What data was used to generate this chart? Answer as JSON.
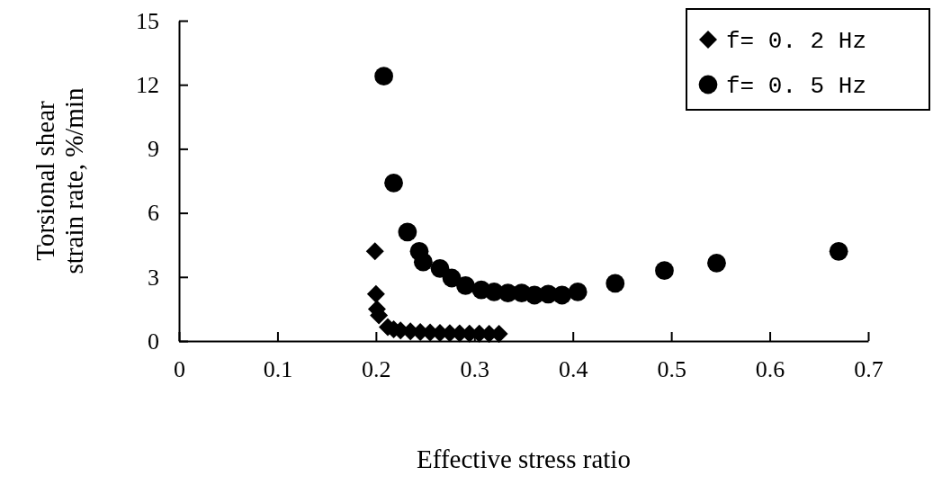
{
  "chart_data": {
    "type": "scatter",
    "xlabel": "Effective stress ratio",
    "ylabel": "Torsional shear strain rate, %/min",
    "xlim": [
      0,
      0.7
    ],
    "ylim": [
      0,
      15
    ],
    "xticks": [
      0,
      0.1,
      0.2,
      0.3,
      0.4,
      0.5,
      0.6,
      0.7
    ],
    "yticks": [
      0,
      3,
      6,
      9,
      12,
      15
    ],
    "grid": false,
    "legend": "top right",
    "series": [
      {
        "name": "f= 0. 2 Hz",
        "color": "#000000",
        "marker": "diamond",
        "x": [
          0.199,
          0.2,
          0.201,
          0.203,
          0.212,
          0.218,
          0.225,
          0.235,
          0.245,
          0.255,
          0.265,
          0.275,
          0.285,
          0.295,
          0.305,
          0.315,
          0.325
        ],
        "values": [
          4.2,
          2.2,
          1.5,
          1.2,
          0.65,
          0.55,
          0.5,
          0.45,
          0.42,
          0.4,
          0.38,
          0.37,
          0.36,
          0.35,
          0.35,
          0.34,
          0.34
        ]
      },
      {
        "name": "f= 0. 5 Hz",
        "color": "#000000",
        "marker": "circle",
        "x": [
          0.208,
          0.218,
          0.232,
          0.244,
          0.248,
          0.265,
          0.277,
          0.291,
          0.307,
          0.32,
          0.334,
          0.348,
          0.361,
          0.375,
          0.389,
          0.405,
          0.443,
          0.493,
          0.546,
          0.67
        ],
        "values": [
          12.4,
          7.4,
          5.1,
          4.2,
          3.7,
          3.4,
          2.95,
          2.6,
          2.4,
          2.3,
          2.25,
          2.25,
          2.15,
          2.2,
          2.15,
          2.3,
          2.7,
          3.3,
          3.65,
          4.2
        ]
      }
    ]
  }
}
